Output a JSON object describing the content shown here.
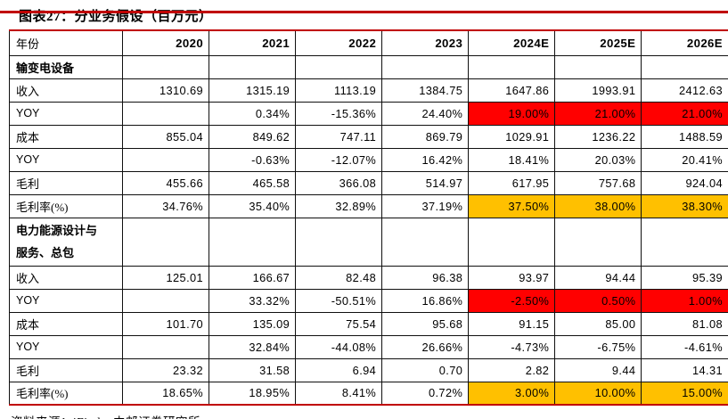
{
  "page": {
    "title": "图表27：分业务假设（百万元）",
    "source": "资料来源：iFind，中邮证券研究所"
  },
  "colors": {
    "accent_rule": "#c00000",
    "highlight_red": "#ff0000",
    "highlight_orange": "#ffc000",
    "grid_line": "#101010"
  },
  "table": {
    "header": [
      "年份",
      "2020",
      "2021",
      "2022",
      "2023",
      "2024E",
      "2025E",
      "2026E"
    ],
    "rows": [
      {
        "label": "输变电设备",
        "type": "section",
        "cells": [
          "",
          "",
          "",
          "",
          "",
          "",
          ""
        ],
        "hl": [
          "",
          "",
          "",
          "",
          "",
          "",
          ""
        ]
      },
      {
        "label": "收入",
        "type": "data",
        "cells": [
          "1310.69",
          "1315.19",
          "1113.19",
          "1384.75",
          "1647.86",
          "1993.91",
          "2412.63"
        ],
        "hl": [
          "",
          "",
          "",
          "",
          "",
          "",
          ""
        ]
      },
      {
        "label": "YOY",
        "type": "data",
        "cells": [
          "",
          "0.34%",
          "-15.36%",
          "24.40%",
          "19.00%",
          "21.00%",
          "21.00%"
        ],
        "hl": [
          "",
          "",
          "",
          "",
          "red",
          "red",
          "red"
        ]
      },
      {
        "label": "成本",
        "type": "data",
        "cells": [
          "855.04",
          "849.62",
          "747.11",
          "869.79",
          "1029.91",
          "1236.22",
          "1488.59"
        ],
        "hl": [
          "",
          "",
          "",
          "",
          "",
          "",
          ""
        ]
      },
      {
        "label": "YOY",
        "type": "data",
        "cells": [
          "",
          "-0.63%",
          "-12.07%",
          "16.42%",
          "18.41%",
          "20.03%",
          "20.41%"
        ],
        "hl": [
          "",
          "",
          "",
          "",
          "",
          "",
          ""
        ]
      },
      {
        "label": "毛利",
        "type": "data",
        "cells": [
          "455.66",
          "465.58",
          "366.08",
          "514.97",
          "617.95",
          "757.68",
          "924.04"
        ],
        "hl": [
          "",
          "",
          "",
          "",
          "",
          "",
          ""
        ]
      },
      {
        "label": "毛利率(%)",
        "type": "data",
        "cells": [
          "34.76%",
          "35.40%",
          "32.89%",
          "37.19%",
          "37.50%",
          "38.00%",
          "38.30%"
        ],
        "hl": [
          "",
          "",
          "",
          "",
          "orange",
          "orange",
          "orange"
        ]
      },
      {
        "label": "电力能源设计与\n服务、总包",
        "type": "section-tall",
        "cells": [
          "",
          "",
          "",
          "",
          "",
          "",
          ""
        ],
        "hl": [
          "",
          "",
          "",
          "",
          "",
          "",
          ""
        ]
      },
      {
        "label": "收入",
        "type": "data",
        "cells": [
          "125.01",
          "166.67",
          "82.48",
          "96.38",
          "93.97",
          "94.44",
          "95.39"
        ],
        "hl": [
          "",
          "",
          "",
          "",
          "",
          "",
          ""
        ]
      },
      {
        "label": "YOY",
        "type": "data",
        "cells": [
          "",
          "33.32%",
          "-50.51%",
          "16.86%",
          "-2.50%",
          "0.50%",
          "1.00%"
        ],
        "hl": [
          "",
          "",
          "",
          "",
          "red",
          "red",
          "red"
        ]
      },
      {
        "label": "成本",
        "type": "data",
        "cells": [
          "101.70",
          "135.09",
          "75.54",
          "95.68",
          "91.15",
          "85.00",
          "81.08"
        ],
        "hl": [
          "",
          "",
          "",
          "",
          "",
          "",
          ""
        ]
      },
      {
        "label": "YOY",
        "type": "data",
        "cells": [
          "",
          "32.84%",
          "-44.08%",
          "26.66%",
          "-4.73%",
          "-6.75%",
          "-4.61%"
        ],
        "hl": [
          "",
          "",
          "",
          "",
          "",
          "",
          ""
        ]
      },
      {
        "label": "毛利",
        "type": "data",
        "cells": [
          "23.32",
          "31.58",
          "6.94",
          "0.70",
          "2.82",
          "9.44",
          "14.31"
        ],
        "hl": [
          "",
          "",
          "",
          "",
          "",
          "",
          ""
        ]
      },
      {
        "label": "毛利率(%)",
        "type": "data",
        "cells": [
          "18.65%",
          "18.95%",
          "8.41%",
          "0.72%",
          "3.00%",
          "10.00%",
          "15.00%"
        ],
        "hl": [
          "",
          "",
          "",
          "",
          "orange",
          "orange",
          "orange"
        ]
      }
    ]
  }
}
